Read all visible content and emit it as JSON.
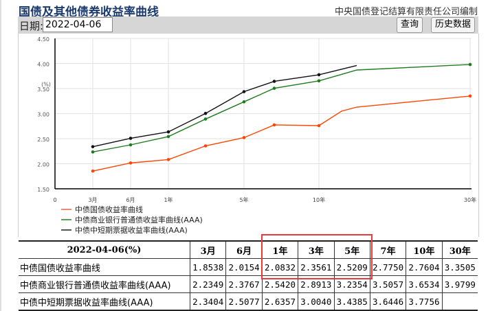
{
  "header": {
    "title": "国债及其他债券收益率曲线",
    "org": "中央国债登记结算有限责任公司编制"
  },
  "toolbar": {
    "date_label": "日期:",
    "date_value": "2022-04-06",
    "query": "查询",
    "history": "历史数据"
  },
  "chart_data": {
    "type": "line",
    "ylabel": "(%)",
    "ylim": [
      1.5,
      4.5
    ],
    "yticks": [
      "1.50",
      "2.00",
      "2.50",
      "3.00",
      "3.50",
      "4.00",
      "4.50"
    ],
    "xticks": [
      {
        "x": 0,
        "label": "0"
      },
      {
        "x": 0.25,
        "label": "3月"
      },
      {
        "x": 0.5,
        "label": "6月"
      },
      {
        "x": 1,
        "label": "1年"
      },
      {
        "x": 5,
        "label": "5年"
      },
      {
        "x": 10,
        "label": "10年"
      },
      {
        "x": 30,
        "label": "30年"
      }
    ],
    "x": [
      0.25,
      0.5,
      1,
      3,
      5,
      7,
      10,
      30
    ],
    "series": [
      {
        "name": "中债国债收益率曲线",
        "color": "#ff4500",
        "legend_color": "#f08a6a",
        "values": [
          1.8538,
          2.0154,
          2.0832,
          2.3561,
          2.5209,
          2.775,
          2.7604,
          3.3505
        ],
        "curve_extra": [
          {
            "x": 13,
            "y": 3.05
          },
          {
            "x": 15,
            "y": 3.13
          }
        ]
      },
      {
        "name": "中债商业银行普通债收益率曲线(AAA)",
        "color": "#1e7b1e",
        "legend_color": "#5aa05a",
        "values": [
          2.2349,
          2.3767,
          2.542,
          2.8913,
          3.2354,
          3.5057,
          3.6534,
          3.9799
        ],
        "curve_extra": [
          {
            "x": 15,
            "y": 3.87
          }
        ]
      },
      {
        "name": "中债中短期票据收益率曲线(AAA)",
        "color": "#111111",
        "legend_color": "#555555",
        "values": [
          2.3404,
          2.5077,
          2.6357,
          3.004,
          3.4385,
          3.6446,
          3.7756,
          null
        ],
        "curve_extra": [
          {
            "x": 15,
            "y": 3.96
          }
        ]
      }
    ]
  },
  "table": {
    "header": [
      "2022-04-06(%)",
      "3月",
      "6月",
      "1年",
      "3年",
      "5年",
      "7年",
      "10年",
      "30年"
    ],
    "rows": [
      [
        "中债国债收益率曲线",
        "1.8538",
        "2.0154",
        "2.0832",
        "2.3561",
        "2.5209",
        "2.7750",
        "2.7604",
        "3.3505"
      ],
      [
        "中债商业银行普通债收益率曲线(AAA)",
        "2.2349",
        "2.3767",
        "2.5420",
        "2.8913",
        "3.2354",
        "3.5057",
        "3.6534",
        "3.9799"
      ],
      [
        "中债中短期票据收益率曲线(AAA)",
        "2.3404",
        "2.5077",
        "2.6357",
        "3.0040",
        "3.4385",
        "3.6446",
        "3.7756",
        ""
      ]
    ]
  }
}
